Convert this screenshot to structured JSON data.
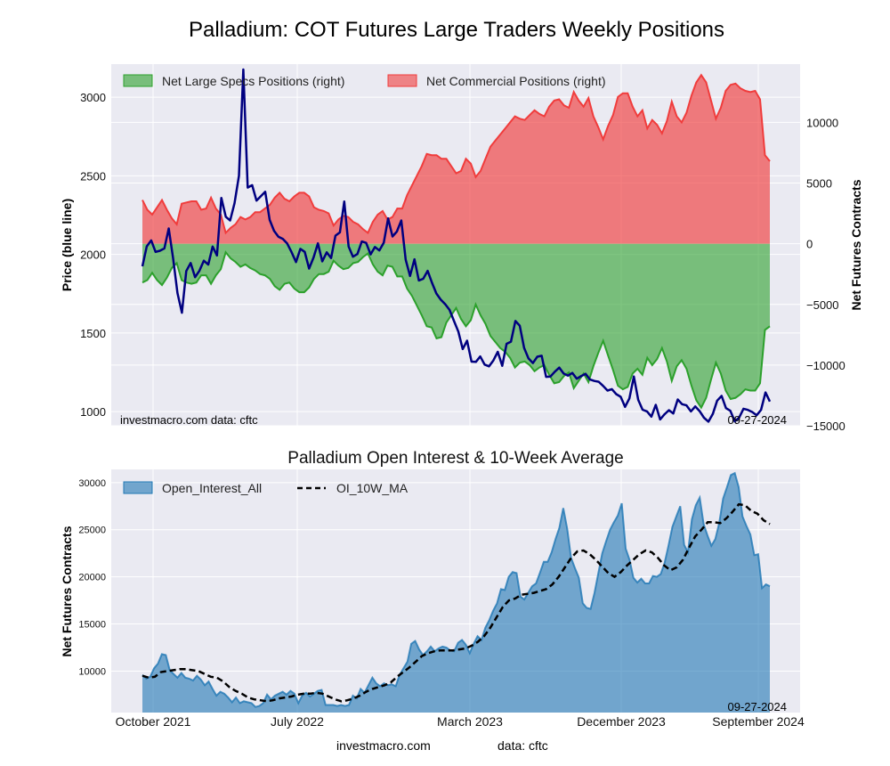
{
  "title": "Palladium: COT Futures Large Traders Weekly Positions",
  "footer": {
    "left": "investmacro.com",
    "right": "data: cftc"
  },
  "chart_data": [
    {
      "type": "area",
      "title": "Palladium: COT Futures Large Traders Weekly Positions",
      "ylabel_left": "Price (blue line)",
      "ylabel_right": "Net Futures Contracts",
      "ylim_left": [
        910,
        3210
      ],
      "ylim_right": [
        -15000,
        14800
      ],
      "yticks_left": [
        1000,
        1500,
        2000,
        2500,
        3000
      ],
      "yticks_right": [
        -15000,
        -10000,
        -5000,
        0,
        5000,
        10000
      ],
      "grid": true,
      "legend_position": "top-left",
      "annotation_left": "investmacro.com   data: cftc",
      "annotation_right": "09-27-2024",
      "series": [
        {
          "name": "Net Large Specs Positions (right)",
          "kind": "area",
          "color": "#2ca02c",
          "values": [
            -3200,
            -3000,
            -2400,
            -3000,
            -3400,
            -2800,
            -2000,
            -1600,
            -3000,
            -3200,
            -3300,
            -3200,
            -2600,
            -2600,
            -3300,
            -2600,
            -2100,
            -700,
            -1200,
            -1500,
            -1900,
            -1700,
            -2000,
            -2200,
            -2500,
            -2600,
            -2900,
            -3500,
            -3800,
            -3300,
            -3200,
            -3700,
            -4000,
            -4000,
            -3600,
            -2900,
            -2500,
            -2500,
            -2300,
            -1400,
            -1800,
            -2100,
            -2000,
            -1600,
            -1500,
            -1100,
            -800,
            -1700,
            -2300,
            -2600,
            -1800,
            -1900,
            -2700,
            -2700,
            -3700,
            -4300,
            -5100,
            -5900,
            -6800,
            -6900,
            -7800,
            -7700,
            -6500,
            -5900,
            -5300,
            -6200,
            -6800,
            -6300,
            -5000,
            -5900,
            -6600,
            -7600,
            -8100,
            -8600,
            -8900,
            -9400,
            -10200,
            -9800,
            -9700,
            -10000,
            -10500,
            -10200,
            -10000,
            -10800,
            -11500,
            -11400,
            -10900,
            -10600,
            -11900,
            -11300,
            -10700,
            -11400,
            -10100,
            -9000,
            -8000,
            -9200,
            -10400,
            -11700,
            -12000,
            -11800,
            -10700,
            -10300,
            -10800,
            -9400,
            -10000,
            -9500,
            -8600,
            -9700,
            -11300,
            -10100,
            -9600,
            -10300,
            -11700,
            -12900,
            -13500,
            -12700,
            -11200,
            -9800,
            -10700,
            -12100,
            -12800,
            -12700,
            -12400,
            -12000,
            -12100,
            -12100,
            -11500,
            -7100,
            -6800
          ]
        },
        {
          "name": "Net Commercial Positions (right)",
          "kind": "area",
          "color": "#f03c3c",
          "values": [
            3600,
            2800,
            2400,
            3000,
            3600,
            2800,
            2100,
            1600,
            3300,
            3400,
            3500,
            3500,
            2800,
            2900,
            3800,
            2900,
            2400,
            900,
            1300,
            1600,
            2200,
            2000,
            2200,
            2600,
            2600,
            2900,
            3200,
            3800,
            4200,
            3700,
            3500,
            3900,
            4200,
            4200,
            3900,
            3000,
            2800,
            2700,
            2500,
            1500,
            2000,
            2300,
            2200,
            1800,
            1600,
            1200,
            900,
            1800,
            2400,
            2700,
            2000,
            2200,
            2900,
            2900,
            4000,
            4800,
            5600,
            6400,
            7400,
            7300,
            7300,
            7000,
            7000,
            6400,
            5800,
            6000,
            7000,
            6600,
            5500,
            6000,
            7000,
            8000,
            8500,
            9000,
            9500,
            10000,
            10500,
            10300,
            10200,
            10600,
            11000,
            10700,
            10500,
            11300,
            11800,
            11900,
            11400,
            11200,
            12500,
            11800,
            11300,
            12000,
            10500,
            9600,
            8600,
            9700,
            10600,
            12100,
            12400,
            12400,
            11300,
            10500,
            11000,
            9500,
            10200,
            9800,
            9100,
            10100,
            11700,
            10500,
            10000,
            10800,
            12200,
            13300,
            13900,
            13300,
            11800,
            10300,
            11200,
            12600,
            13100,
            13200,
            12800,
            12600,
            12500,
            12600,
            11900,
            7300,
            6800
          ]
        },
        {
          "name": "Price",
          "kind": "line",
          "axis": "left",
          "color": "#000080",
          "values": [
            1924,
            2051,
            2089,
            2016,
            2023,
            2038,
            2165,
            1975,
            1754,
            1629,
            1894,
            1945,
            1855,
            1896,
            1960,
            1935,
            2050,
            1993,
            2359,
            2239,
            2216,
            2325,
            2500,
            3176,
            2425,
            2440,
            2342,
            2370,
            2398,
            2219,
            2150,
            2112,
            2098,
            2069,
            2014,
            1951,
            2035,
            2016,
            1910,
            1980,
            2070,
            1956,
            2013,
            1977,
            2119,
            2140,
            2336,
            2050,
            1985,
            2002,
            2082,
            2073,
            2000,
            2047,
            2025,
            2074,
            2229,
            2114,
            2145,
            2216,
            1967,
            1863,
            1969,
            1834,
            1845,
            1895,
            1819,
            1751,
            1712,
            1683,
            1647,
            1578,
            1509,
            1398,
            1451,
            1318,
            1316,
            1351,
            1299,
            1288,
            1326,
            1380,
            1291,
            1431,
            1445,
            1576,
            1546,
            1405,
            1338,
            1309,
            1349,
            1355,
            1221,
            1223,
            1254,
            1280,
            1242,
            1229,
            1246,
            1209,
            1226,
            1240,
            1204,
            1195,
            1190,
            1163,
            1134,
            1143,
            1111,
            1094,
            1030,
            1084,
            1223,
            1075,
            1012,
            1001,
            968,
            1043,
            950,
            983,
            1009,
            988,
            1077,
            1047,
            1040,
            1001,
            1033,
            1003,
            961,
            936,
            985,
            1070,
            1100,
            1022,
            1005,
            938,
            962,
            1018,
            1011,
            997,
            977,
            1011,
            1122,
            1064
          ]
        }
      ]
    },
    {
      "type": "area",
      "title": "Palladium Open Interest & 10-Week Average",
      "ylabel": "Net Futures Contracts",
      "ylim": [
        5600,
        31400
      ],
      "yticks": [
        10000,
        15000,
        20000,
        25000,
        30000
      ],
      "grid": true,
      "legend_position": "top-left",
      "annotation_right": "09-27-2024",
      "xticks": [
        "October 2021",
        "July 2022",
        "March 2023",
        "December 2023",
        "September 2024"
      ],
      "series": [
        {
          "name": "Open_Interest_All",
          "kind": "area",
          "color": "#1f77b4",
          "values": [
            9600,
            9200,
            9400,
            10300,
            10800,
            11800,
            11700,
            10100,
            9700,
            9300,
            9800,
            9300,
            9200,
            9000,
            9500,
            9100,
            8500,
            8900,
            8100,
            7400,
            7800,
            7600,
            7200,
            6700,
            7200,
            6600,
            6800,
            6700,
            6600,
            6200,
            6300,
            6600,
            7500,
            7000,
            7400,
            7600,
            7800,
            7500,
            7900,
            7600,
            6600,
            7400,
            7700,
            7300,
            7600,
            7900,
            8000,
            6400,
            6400,
            6400,
            6300,
            6400,
            6300,
            6400,
            7400,
            7100,
            8100,
            7700,
            8500,
            9300,
            8700,
            8400,
            8700,
            8500,
            8600,
            8400,
            9600,
            10300,
            11000,
            12900,
            13200,
            12300,
            11700,
            12100,
            12600,
            12100,
            12400,
            12600,
            12500,
            12200,
            12100,
            13000,
            13300,
            12800,
            11900,
            12900,
            13700,
            13300,
            14600,
            15400,
            16400,
            17200,
            18700,
            18600,
            20000,
            20500,
            20400,
            17900,
            17600,
            18300,
            19000,
            19300,
            20400,
            21600,
            21600,
            22600,
            24000,
            25200,
            27300,
            25100,
            22000,
            20900,
            19900,
            17200,
            16700,
            16600,
            18300,
            20400,
            22500,
            23800,
            25000,
            25800,
            26500,
            27800,
            23000,
            21800,
            19900,
            19400,
            19800,
            19300,
            19300,
            20100,
            20000,
            20300,
            21500,
            23300,
            25300,
            26400,
            27500,
            23400,
            22600,
            26100,
            27600,
            28400,
            25600,
            24400,
            23300,
            24000,
            25700,
            28300,
            29500,
            30800,
            31000,
            29500,
            26400,
            25400,
            24500,
            22300,
            22400,
            18800,
            19200,
            19000
          ]
        },
        {
          "name": "OI_10W_MA",
          "kind": "line",
          "color": "#000000",
          "dash": true,
          "values": [
            9500,
            9300,
            9400,
            9900,
            10000,
            10100,
            10200,
            10200,
            10100,
            10000,
            9700,
            9400,
            9300,
            8900,
            8300,
            7900,
            7600,
            7200,
            7000,
            6900,
            6800,
            6900,
            7100,
            7200,
            7300,
            7500,
            7600,
            7600,
            7700,
            7600,
            7300,
            7000,
            6800,
            6900,
            7100,
            7400,
            7800,
            8100,
            8300,
            8500,
            8800,
            9400,
            9900,
            10400,
            11000,
            11600,
            11900,
            12100,
            12200,
            12200,
            12200,
            12300,
            12400,
            12700,
            13100,
            13700,
            14600,
            15700,
            16800,
            17500,
            17700,
            18100,
            18200,
            18300,
            18500,
            18700,
            19200,
            20000,
            21000,
            22000,
            22700,
            22800,
            22400,
            21800,
            21100,
            20400,
            20000,
            20500,
            21200,
            21800,
            22400,
            22800,
            22600,
            22000,
            21200,
            20700,
            21000,
            21800,
            23100,
            24300,
            25000,
            25800,
            25800,
            25700,
            26200,
            26900,
            27700,
            27600,
            27000,
            26700,
            26000,
            25600
          ]
        }
      ]
    }
  ]
}
